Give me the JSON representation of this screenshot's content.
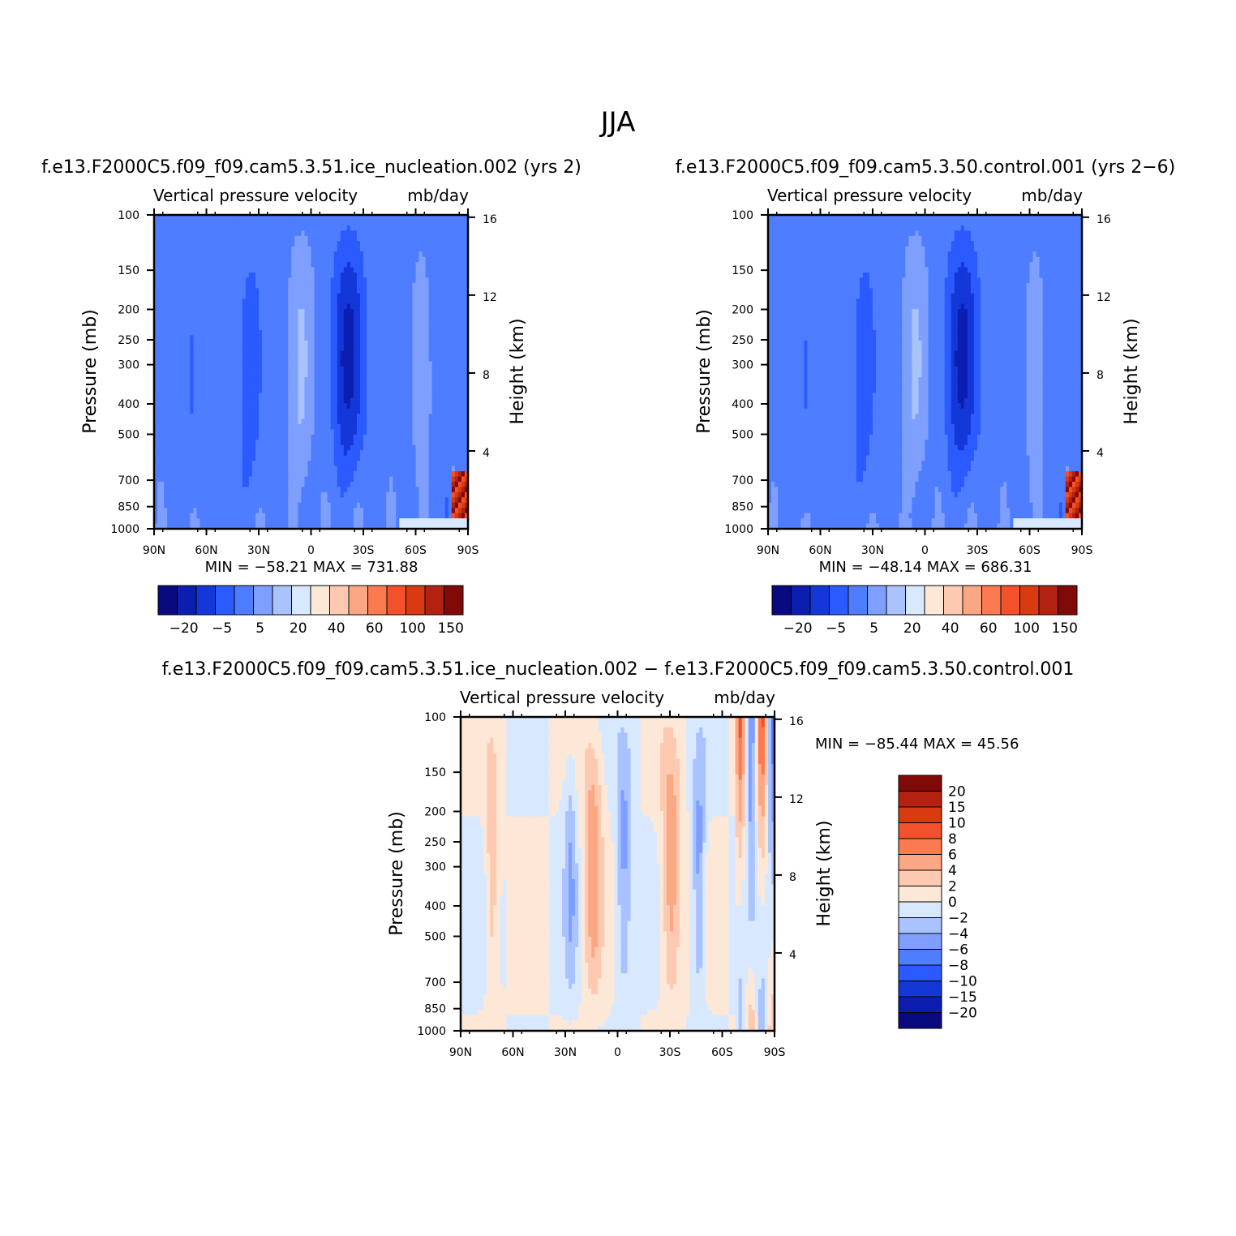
{
  "figure": {
    "title": "JJA"
  },
  "palettes": {
    "main": [
      "#0a0a80",
      "#0b1eb0",
      "#1437d8",
      "#2b5bff",
      "#4f7dff",
      "#7f9fff",
      "#a9c3ff",
      "#d8e9ff",
      "#fde8d8",
      "#fdcab1",
      "#fca783",
      "#fb7a4f",
      "#f3512b",
      "#d93a10",
      "#b32210",
      "#800a08"
    ],
    "diff": [
      "#0a0a80",
      "#0b1eb0",
      "#1437d8",
      "#2b5bff",
      "#4f7dff",
      "#7f9fff",
      "#a9c3ff",
      "#d8e9ff",
      "#fde8d8",
      "#fdcab1",
      "#fca783",
      "#fb7a4f",
      "#f3512b",
      "#d93a10",
      "#b32210",
      "#800a08"
    ]
  },
  "chart_data": [
    {
      "id": "case",
      "type": "heatmap",
      "header": "f.e13.F2000C5.f09_f09.cam5.3.51.ice_nucleation.002  (yrs  2)",
      "title_left": "Vertical  pressure  velocity",
      "units": "mb/day",
      "ylabel": "Pressure  (mb)",
      "ylabel_right": "Height  (km)",
      "x_ticks": [
        "90N",
        "60N",
        "30N",
        "0",
        "30S",
        "60S",
        "90S"
      ],
      "y_ticks": [
        "100",
        "150",
        "200",
        "250",
        "300",
        "400",
        "500",
        "700",
        "850",
        "1000"
      ],
      "y_ticks_right": [
        "16",
        "12",
        "8",
        "4"
      ],
      "stats": "MIN  =  −58.21    MAX  =  731.88",
      "colorbar_labels": [
        "−20",
        "−5",
        "5",
        "20",
        "40",
        "60",
        "100",
        "150"
      ]
    },
    {
      "id": "control",
      "type": "heatmap",
      "header": "f.e13.F2000C5.f09_f09.cam5.3.50.control.001  (yrs  2−6)",
      "title_left": "Vertical  pressure  velocity",
      "units": "mb/day",
      "ylabel": "Pressure  (mb)",
      "ylabel_right": "Height  (km)",
      "x_ticks": [
        "90N",
        "60N",
        "30N",
        "0",
        "30S",
        "60S",
        "90S"
      ],
      "y_ticks": [
        "100",
        "150",
        "200",
        "250",
        "300",
        "400",
        "500",
        "700",
        "850",
        "1000"
      ],
      "y_ticks_right": [
        "16",
        "12",
        "8",
        "4"
      ],
      "stats": "MIN  =  −48.14    MAX  =  686.31",
      "colorbar_labels": [
        "−20",
        "−5",
        "5",
        "20",
        "40",
        "60",
        "100",
        "150"
      ]
    },
    {
      "id": "diff",
      "type": "heatmap",
      "header": "f.e13.F2000C5.f09_f09.cam5.3.51.ice_nucleation.002  −  f.e13.F2000C5.f09_f09.cam5.3.50.control.001",
      "title_left": "Vertical  pressure  velocity",
      "units": "mb/day",
      "ylabel": "Pressure  (mb)",
      "ylabel_right": "Height  (km)",
      "x_ticks": [
        "90N",
        "60N",
        "30N",
        "0",
        "30S",
        "60S",
        "90S"
      ],
      "y_ticks": [
        "100",
        "150",
        "200",
        "250",
        "300",
        "400",
        "500",
        "700",
        "850",
        "1000"
      ],
      "y_ticks_right": [
        "16",
        "12",
        "8",
        "4"
      ],
      "stats": "MIN  =  −85.44    MAX  =    45.56",
      "colorbar_labels": [
        "20",
        "15",
        "10",
        "8",
        "6",
        "4",
        "2",
        "0",
        "−2",
        "−4",
        "−6",
        "−8",
        "−10",
        "−15",
        "−20"
      ]
    }
  ]
}
